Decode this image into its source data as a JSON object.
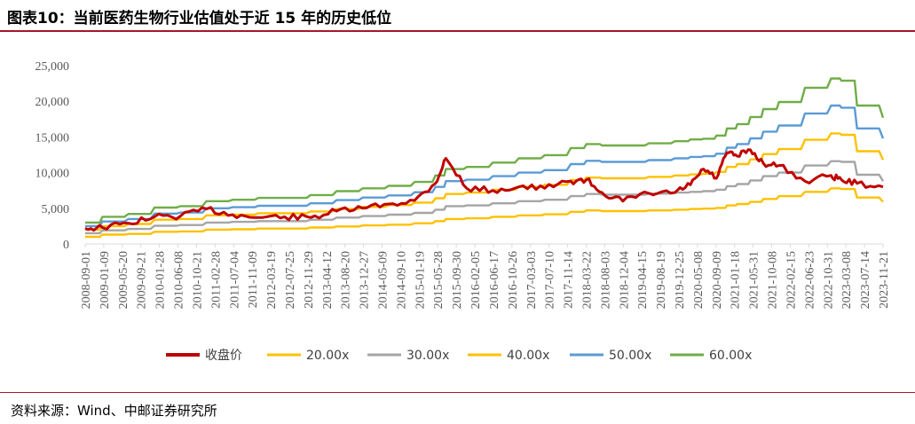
{
  "figure": {
    "title": "图表10：当前医药生物行业估值处于近 15 年的历史低位",
    "source": "资料来源：Wind、中邮证券研究所"
  },
  "colors": {
    "rule": "#a3192b",
    "close": "#c00000",
    "x20": "#ffc000",
    "x30": "#a5a5a5",
    "x40": "#ffc000",
    "x50": "#5b9bd5",
    "x60": "#70ad47",
    "axis": "#d9d9d9",
    "tick_text": "#595959"
  },
  "chart_data": {
    "type": "line",
    "title": "",
    "xlabel": "",
    "ylabel": "",
    "ylim": [
      0,
      25000
    ],
    "yticks": [
      0,
      5000,
      10000,
      15000,
      20000,
      25000
    ],
    "ytick_labels": [
      "0",
      "5,000",
      "10,000",
      "15,000",
      "20,000",
      "25,000"
    ],
    "grid": false,
    "legend_position": "bottom",
    "x_tick_labels": [
      "2008-09-01",
      "2009-01-09",
      "2009-05-20",
      "2009-09-21",
      "2010-01-28",
      "2010-06-08",
      "2010-10-21",
      "2011-02-28",
      "2011-07-04",
      "2011-11-09",
      "2012-03-19",
      "2012-07-25",
      "2012-11-29",
      "2013-04-12",
      "2013-08-20",
      "2013-12-27",
      "2014-05-09",
      "2014-09-10",
      "2015-01-19",
      "2015-05-28",
      "2015-09-30",
      "2016-02-05",
      "2016-06-17",
      "2016-10-26",
      "2017-03-03",
      "2017-07-10",
      "2017-11-14",
      "2018-03-22",
      "2018-08-03",
      "2018-12-04",
      "2019-04-15",
      "2019-08-19",
      "2019-12-25",
      "2020-05-08",
      "2020-09-09",
      "2021-01-18",
      "2021-05-31",
      "2021-10-08",
      "2022-02-15",
      "2022-06-23",
      "2022-10-31",
      "2023-03-08",
      "2023-07-14",
      "2023-11-21"
    ],
    "x": [
      2008.67,
      2009.0,
      2009.5,
      2010.0,
      2010.5,
      2011.0,
      2011.5,
      2012.0,
      2012.5,
      2013.0,
      2013.5,
      2014.0,
      2014.5,
      2015.0,
      2015.4,
      2015.6,
      2016.0,
      2016.5,
      2017.0,
      2017.5,
      2018.0,
      2018.3,
      2018.6,
      2019.0,
      2019.5,
      2020.0,
      2020.3,
      2020.55,
      2020.8,
      2021.0,
      2021.2,
      2021.45,
      2021.7,
      2022.0,
      2022.5,
      2023.0,
      2023.2,
      2023.5,
      2024.0
    ],
    "series": [
      {
        "name": "收盘价",
        "color": "#c00000",
        "values": [
          2200,
          2300,
          2900,
          3800,
          3900,
          4900,
          4100,
          3700,
          3800,
          3700,
          4600,
          5000,
          5600,
          6100,
          8500,
          12000,
          7800,
          7500,
          8000,
          7800,
          8800,
          9000,
          7200,
          6000,
          7100,
          7200,
          8300,
          10500,
          9200,
          12800,
          12300,
          13200,
          11300,
          11000,
          8800,
          9600,
          9000,
          8500,
          8000
        ]
      },
      {
        "name": "20.00x",
        "color": "#ffc000",
        "values": [
          1000,
          1300,
          1400,
          1700,
          1750,
          2000,
          2050,
          2150,
          2150,
          2300,
          2450,
          2600,
          2700,
          2900,
          3200,
          3500,
          3600,
          3800,
          4000,
          4150,
          4500,
          4700,
          4600,
          4600,
          4700,
          4800,
          4900,
          4950,
          5050,
          5400,
          5600,
          5900,
          6300,
          6700,
          7300,
          7800,
          7700,
          6500,
          5900
        ]
      },
      {
        "name": "30.00x",
        "color": "#a5a5a5",
        "values": [
          1500,
          1900,
          2100,
          2550,
          2650,
          3000,
          3100,
          3200,
          3200,
          3400,
          3700,
          3900,
          4100,
          4350,
          4800,
          5300,
          5400,
          5700,
          6000,
          6200,
          6700,
          7000,
          6900,
          6900,
          7050,
          7200,
          7300,
          7400,
          7600,
          8100,
          8400,
          8900,
          9500,
          10000,
          11000,
          11600,
          11500,
          9700,
          8800
        ]
      },
      {
        "name": "40.00x",
        "color": "#ffc000",
        "values": [
          2000,
          2500,
          2800,
          3400,
          3500,
          4000,
          4100,
          4300,
          4300,
          4550,
          4900,
          5200,
          5450,
          5800,
          6400,
          7000,
          7200,
          7600,
          8000,
          8300,
          8950,
          9300,
          9200,
          9200,
          9400,
          9600,
          9750,
          9850,
          10100,
          10800,
          11200,
          11850,
          12600,
          13300,
          14600,
          15500,
          15300,
          13000,
          11800
        ]
      },
      {
        "name": "50.00x",
        "color": "#5b9bd5",
        "values": [
          2500,
          3150,
          3500,
          4250,
          4400,
          5000,
          5150,
          5350,
          5350,
          5700,
          6150,
          6500,
          6800,
          7250,
          8000,
          8800,
          9000,
          9500,
          10000,
          10350,
          11200,
          11650,
          11500,
          11500,
          11750,
          12000,
          12200,
          12300,
          12650,
          13500,
          14000,
          14800,
          15750,
          16600,
          18300,
          19400,
          19100,
          16200,
          14800
        ]
      },
      {
        "name": "60.00x",
        "color": "#70ad47",
        "values": [
          3000,
          3800,
          4200,
          5100,
          5300,
          6000,
          6200,
          6450,
          6450,
          6850,
          7400,
          7800,
          8150,
          8700,
          9600,
          10500,
          10800,
          11400,
          12000,
          12450,
          13450,
          14000,
          13800,
          13800,
          14100,
          14400,
          14650,
          14750,
          15200,
          16200,
          16800,
          17800,
          18900,
          19900,
          21900,
          23200,
          22900,
          19400,
          17700
        ]
      }
    ]
  }
}
